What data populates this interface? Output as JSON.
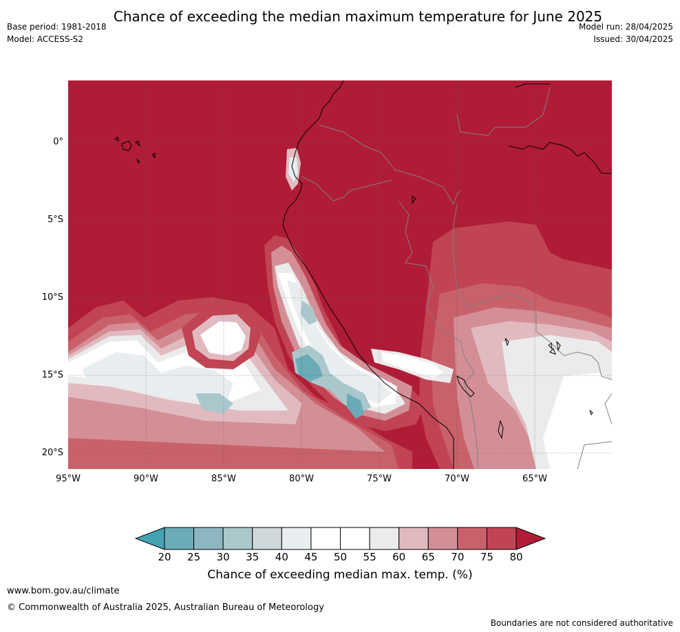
{
  "title": "Chance of exceeding the median maximum temperature for June 2025",
  "meta_left": {
    "base_period": "Base period: 1981-2018",
    "model": "Model: ACCESS-S2"
  },
  "meta_right": {
    "model_run": "Model run: 28/04/2025",
    "issued": "Issued: 30/04/2025"
  },
  "map": {
    "lat_labels": [
      "0°",
      "5°S",
      "10°S",
      "15°S",
      "20°S"
    ],
    "lon_labels": [
      "95°W",
      "90°W",
      "85°W",
      "80°W",
      "75°W",
      "70°W",
      "65°W"
    ],
    "colors": {
      "above_80": "#b01c38",
      "75_80": "#c14454",
      "70_75": "#c9616b",
      "65_70": "#d48f96",
      "60_65": "#e1bac0",
      "55_60": "#ebebeb",
      "50_55": "#ffffff",
      "45_50": "#ffffff",
      "40_45": "#e8eef0",
      "35_40": "#ced7d9",
      "30_35": "#aac7cc",
      "25_30": "#8cb7c2",
      "20_25": "#6aabb7",
      "below_20": "#45a2b2"
    }
  },
  "colorbar": {
    "ticks": [
      "20",
      "25",
      "30",
      "35",
      "40",
      "45",
      "50",
      "55",
      "60",
      "65",
      "70",
      "75",
      "80"
    ],
    "segment_colors": [
      "#6aabb7",
      "#8cb7c2",
      "#aac7cc",
      "#ced7d9",
      "#e8eef0",
      "#ffffff",
      "#ffffff",
      "#ebebeb",
      "#e1bac0",
      "#d48f96",
      "#c9616b",
      "#c14454"
    ],
    "low_extend_color": "#45a2b2",
    "high_extend_color": "#b01c38",
    "label": "Chance of exceeding median max. temp. (%)"
  },
  "footer": {
    "url": "www.bom.gov.au/climate",
    "copyright": "© Commonwealth of Australia 2025, Australian Bureau of Meteorology",
    "disclaimer": "Boundaries are not considered authoritative"
  }
}
